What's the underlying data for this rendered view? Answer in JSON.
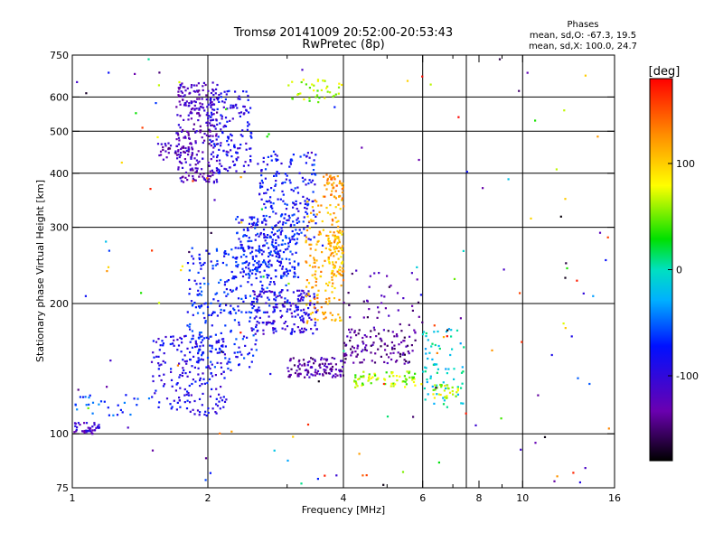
{
  "chart_data": {
    "type": "scatter",
    "title": "Tromsø 20141009 20:52:00-20:53:43",
    "subtitle": "RwPretec (8p)",
    "xlabel": "Frequency [MHz]",
    "ylabel": "Stationary phase Virtual Height [km]",
    "x_scale": "log",
    "y_scale": "log",
    "xlim": [
      1,
      16
    ],
    "ylim": [
      75,
      750
    ],
    "x_ticks": [
      1,
      2,
      4,
      6,
      8,
      10,
      16
    ],
    "x_minor_ticks": [
      3,
      5,
      7,
      9
    ],
    "x_gridlines": [
      2,
      4,
      6,
      7.5,
      10
    ],
    "y_ticks": [
      75,
      100,
      200,
      300,
      400,
      500,
      600,
      750
    ],
    "y_gridlines": [
      100,
      200,
      300,
      400,
      500,
      600
    ],
    "grid": true,
    "legend": {
      "title": "Phases",
      "lines": [
        "mean, sd,O: -67.3, 19.5",
        "mean, sd,X: 100.0, 24.7"
      ],
      "placement": "top-right"
    },
    "colorbar": {
      "label": "[deg]",
      "range": [
        -180,
        180
      ],
      "ticks": [
        -100,
        0,
        100
      ],
      "colormap": "rainbow"
    },
    "clusters": [
      {
        "x": [
          1.7,
          2.1
        ],
        "y": [
          380,
          650
        ],
        "phase": -120,
        "n": 260
      },
      {
        "x": [
          2.0,
          2.5
        ],
        "y": [
          400,
          620
        ],
        "phase": -90,
        "n": 160
      },
      {
        "x": [
          1.55,
          1.85
        ],
        "y": [
          430,
          470
        ],
        "phase": -125,
        "n": 40
      },
      {
        "x": [
          2.3,
          3.2
        ],
        "y": [
          230,
          320
        ],
        "phase": -75,
        "n": 220
      },
      {
        "x": [
          2.6,
          3.5
        ],
        "y": [
          280,
          450
        ],
        "phase": -80,
        "n": 180
      },
      {
        "x": [
          1.8,
          3.0
        ],
        "y": [
          190,
          270
        ],
        "phase": -70,
        "n": 200
      },
      {
        "x": [
          2.5,
          3.5
        ],
        "y": [
          170,
          215
        ],
        "phase": -100,
        "n": 180
      },
      {
        "x": [
          1.5,
          2.2
        ],
        "y": [
          110,
          170
        ],
        "phase": -90,
        "n": 200
      },
      {
        "x": [
          1.8,
          2.6
        ],
        "y": [
          140,
          200
        ],
        "phase": -75,
        "n": 110
      },
      {
        "x": [
          1.0,
          1.15
        ],
        "y": [
          100,
          106
        ],
        "phase": -110,
        "n": 40
      },
      {
        "x": [
          1.0,
          1.4
        ],
        "y": [
          110,
          123
        ],
        "phase": -60,
        "n": 28
      },
      {
        "x": [
          3.0,
          4.0
        ],
        "y": [
          135,
          150
        ],
        "phase": -130,
        "n": 110
      },
      {
        "x": [
          3.3,
          4.0
        ],
        "y": [
          180,
          350
        ],
        "phase": 115,
        "n": 170
      },
      {
        "x": [
          3.6,
          4.0
        ],
        "y": [
          350,
          400
        ],
        "phase": 125,
        "n": 45
      },
      {
        "x": [
          3.7,
          4.0
        ],
        "y": [
          230,
          290
        ],
        "phase": 105,
        "n": 60
      },
      {
        "x": [
          4.0,
          5.8
        ],
        "y": [
          145,
          175
        ],
        "phase": -140,
        "n": 120
      },
      {
        "x": [
          4.2,
          5.8
        ],
        "y": [
          128,
          140
        ],
        "phase": 60,
        "n": 70
      },
      {
        "x": [
          6.0,
          7.4
        ],
        "y": [
          115,
          175
        ],
        "phase": -10,
        "n": 70
      },
      {
        "x": [
          6.3,
          7.2
        ],
        "y": [
          120,
          130
        ],
        "phase": 70,
        "n": 28
      },
      {
        "x": [
          4.0,
          6.0
        ],
        "y": [
          175,
          240
        ],
        "phase": -135,
        "n": 40
      },
      {
        "x": [
          3.0,
          4.0
        ],
        "y": [
          580,
          660
        ],
        "phase": 60,
        "n": 40
      },
      {
        "x": [
          1.0,
          16.0
        ],
        "y": [
          75,
          750
        ],
        "phase": null,
        "n": 150
      }
    ],
    "annotations": [
      "Phases",
      "mean, sd,O: -67.3, 19.5",
      "mean, sd,X: 100.0, 24.7"
    ]
  }
}
